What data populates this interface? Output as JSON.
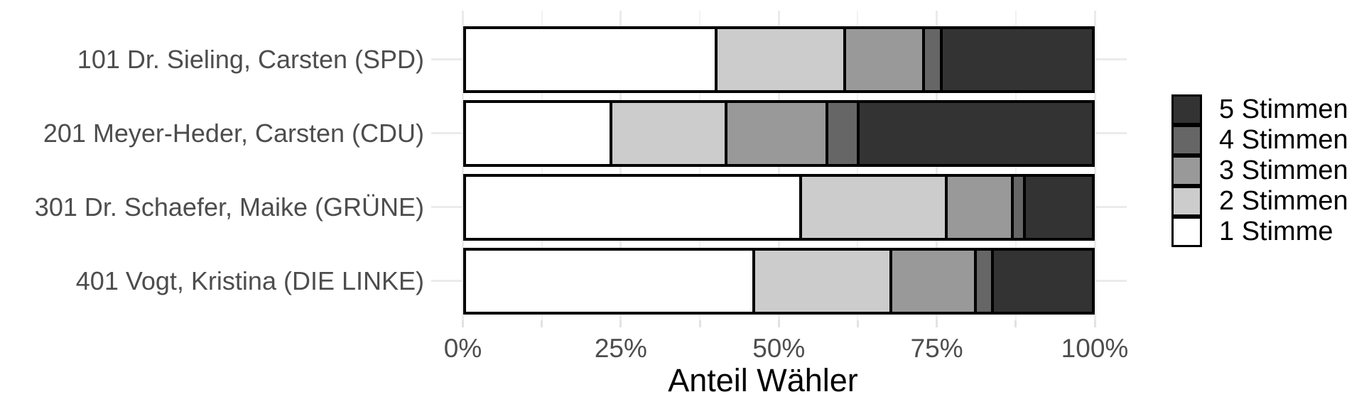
{
  "chart_data": {
    "type": "bar",
    "orientation": "horizontal",
    "stacked": true,
    "unit": "percent",
    "title": "",
    "xlabel": "Anteil Wähler",
    "ylabel": "",
    "categories": [
      "101 Dr. Sieling, Carsten (SPD)",
      "201 Meyer-Heder, Carsten (CDU)",
      "301 Dr. Schaefer, Maike (GRÜNE)",
      "401 Vogt, Kristina (DIE LINKE)"
    ],
    "series": [
      {
        "name": "1 Stimme",
        "color": "#FFFFFF",
        "values": [
          40.5,
          23.4,
          54.2,
          46.6
        ]
      },
      {
        "name": "2 Stimmen",
        "color": "#CCCCCC",
        "values": [
          20.5,
          18.3,
          23.3,
          21.9
        ]
      },
      {
        "name": "3 Stimmen",
        "color": "#999999",
        "values": [
          12.3,
          15.9,
          10.2,
          13.3
        ]
      },
      {
        "name": "4 Stimmen",
        "color": "#666666",
        "values": [
          2.4,
          4.6,
          1.5,
          2.2
        ]
      },
      {
        "name": "5 Stimmen",
        "color": "#333333",
        "values": [
          24.3,
          37.8,
          10.8,
          16.0
        ]
      }
    ],
    "xlim": [
      0,
      100
    ],
    "x_tick_labels": [
      "0%",
      "25%",
      "50%",
      "75%",
      "100%"
    ],
    "x_tick_values": [
      0,
      25,
      50,
      75,
      100
    ],
    "x_minor_tick_values": [
      12.5,
      37.5,
      62.5,
      87.5
    ],
    "grid": true,
    "legend": {
      "position": "right",
      "entries_top_to_bottom": [
        "5 Stimmen",
        "4 Stimmen",
        "3 Stimmen",
        "2 Stimmen",
        "1 Stimme"
      ]
    },
    "style": {
      "bar_border_color": "#000000",
      "grid_color": "#EBEBEB",
      "axis_text_color": "#4D4D4D",
      "axis_title_color": "#000000",
      "background": "#FFFFFF"
    }
  }
}
